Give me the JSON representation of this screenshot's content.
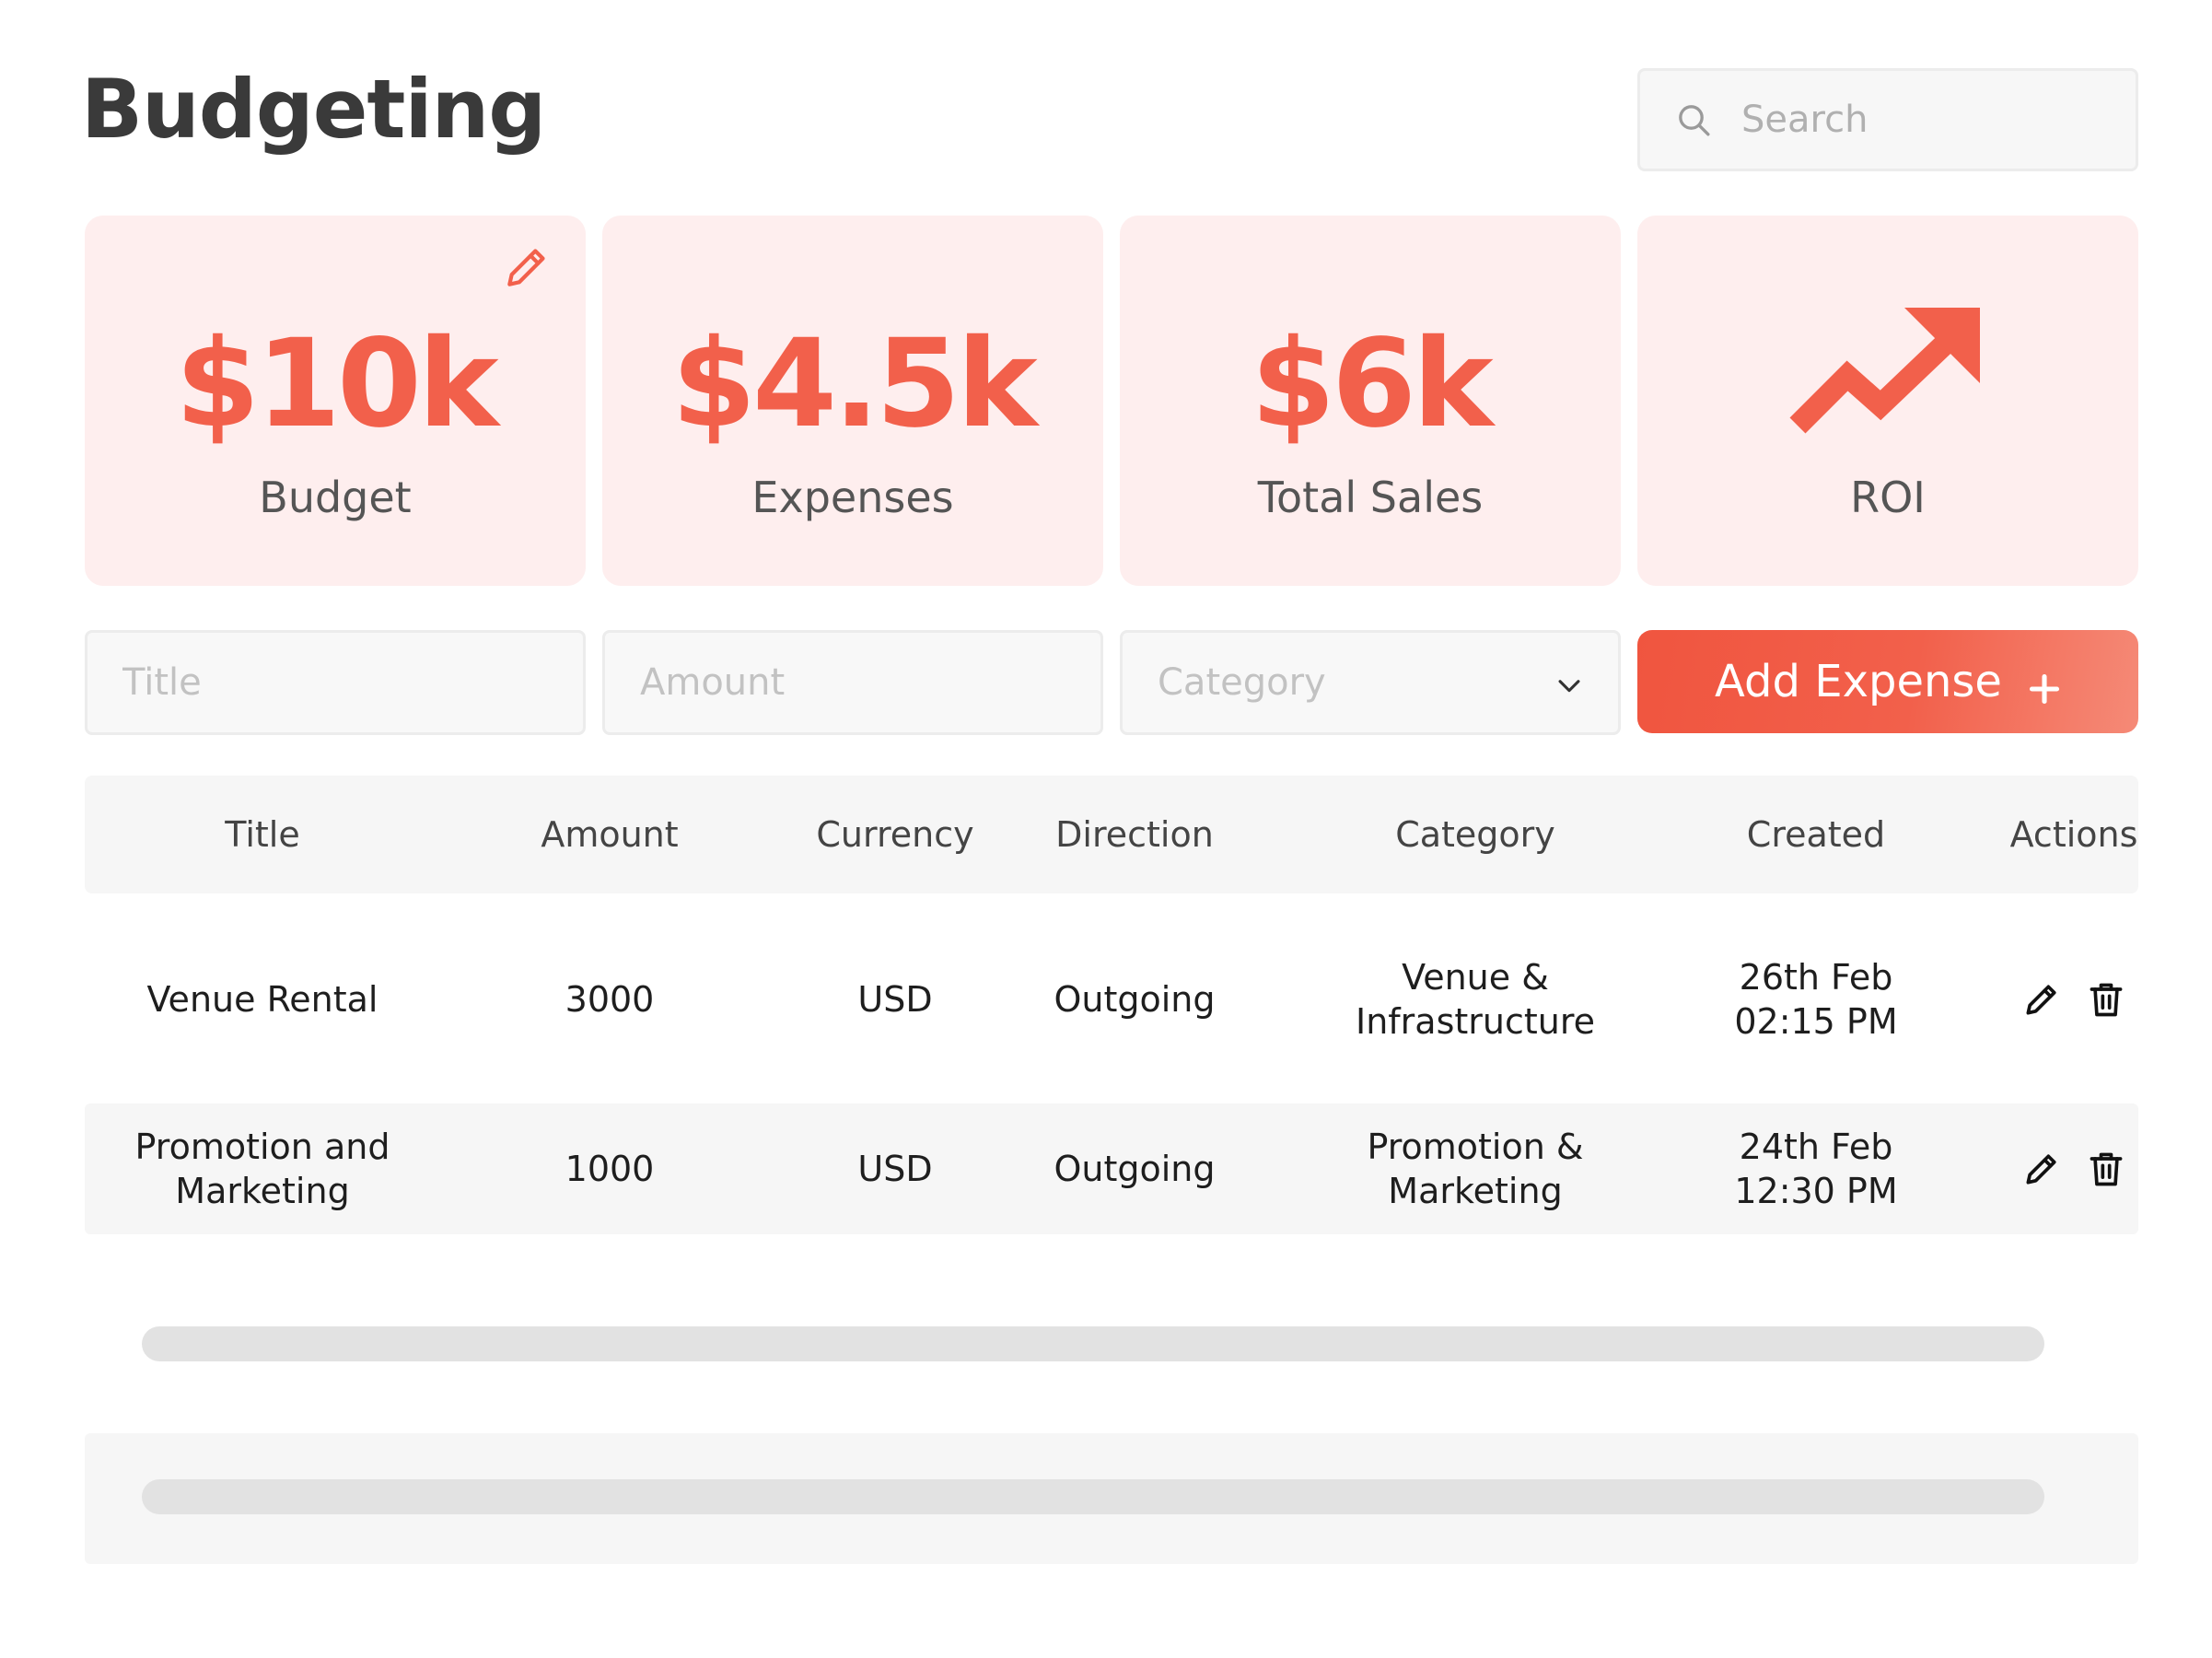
{
  "header": {
    "title": "Budgeting",
    "search_placeholder": "Search"
  },
  "stats": [
    {
      "value": "$10k",
      "label": "Budget"
    },
    {
      "value": "$4.5k",
      "label": "Expenses"
    },
    {
      "value": "$6k",
      "label": "Total Sales"
    },
    {
      "label": "ROI",
      "icon": "trending-up-icon"
    }
  ],
  "form": {
    "title_placeholder": "Title",
    "amount_placeholder": "Amount",
    "category_placeholder": "Category",
    "add_button_label": "Add Expense"
  },
  "table": {
    "columns": [
      "Title",
      "Amount",
      "Currency",
      "Direction",
      "Category",
      "Created",
      "Actions"
    ],
    "rows": [
      {
        "title": "Venue Rental",
        "amount": "3000",
        "currency": "USD",
        "direction": "Outgoing",
        "category": "Venue &\nInfrastructure",
        "created": "26th Feb\n02:15 PM"
      },
      {
        "title": "Promotion and\nMarketing",
        "amount": "1000",
        "currency": "USD",
        "direction": "Outgoing",
        "category": "Promotion &\nMarketing",
        "created": "24th Feb\n12:30 PM"
      }
    ]
  },
  "colors": {
    "accent": "#f2604b",
    "card_background": "#feeeee",
    "row_alt": "#f6f6f6",
    "skeleton": "#e2e2e2"
  }
}
